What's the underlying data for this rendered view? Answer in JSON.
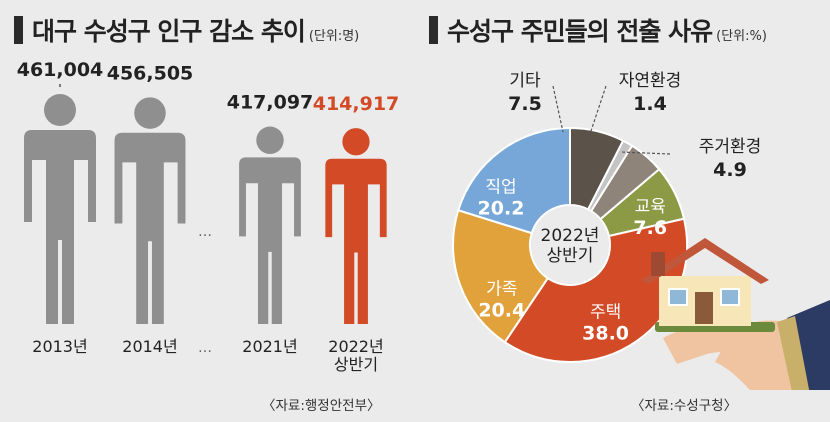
{
  "population": {
    "title": "대구 수성구 인구 감소 추이",
    "unit": "(단위:명)",
    "source": "〈자료:행정안전부〉",
    "ellipsis": "…"
  },
  "reasons": {
    "title": "수성구 주민들의 전출 사유",
    "unit": "(단위:%)",
    "center_label": [
      "2022년",
      "상반기"
    ],
    "source": "〈자료:수성구청〉"
  },
  "colors": {
    "person_gray": "#8f8f8f",
    "person_highlight": "#d34a26",
    "highlight_text": "#d34a26"
  },
  "chart_data": [
    {
      "type": "bar",
      "title": "대구 수성구 인구 감소 추이",
      "unit": "명",
      "categories": [
        {
          "x": [
            "2013년"
          ],
          "value": 461004,
          "label": "461,004",
          "highlight": false
        },
        {
          "x": [
            "2014년"
          ],
          "value": 456505,
          "label": "456,505",
          "highlight": false
        },
        {
          "x": [
            "2021년"
          ],
          "value": 417097,
          "label": "417,097",
          "highlight": false
        },
        {
          "x": [
            "2022년",
            "상반기"
          ],
          "value": 414917,
          "label": "414,917",
          "highlight": true
        }
      ]
    },
    {
      "type": "pie",
      "title": "수성구 주민들의 전출 사유",
      "unit": "%",
      "slices": [
        {
          "label": "기타",
          "value": 7.5,
          "color": "#5b5249",
          "label_pos": "outside"
        },
        {
          "label": "자연환경",
          "value": 1.4,
          "color": "#c4c4c4",
          "label_pos": "outside"
        },
        {
          "label": "주거환경",
          "value": 4.9,
          "color": "#8e847a",
          "label_pos": "outside"
        },
        {
          "label": "교육",
          "value": 7.6,
          "color": "#8c9a45",
          "label_pos": "inside"
        },
        {
          "label": "주택",
          "value": 38.0,
          "color": "#d34a26",
          "label_pos": "inside"
        },
        {
          "label": "가족",
          "value": 20.4,
          "color": "#e1a23c",
          "label_pos": "inside"
        },
        {
          "label": "직업",
          "value": 20.2,
          "color": "#77a7d8",
          "label_pos": "inside"
        }
      ]
    }
  ]
}
